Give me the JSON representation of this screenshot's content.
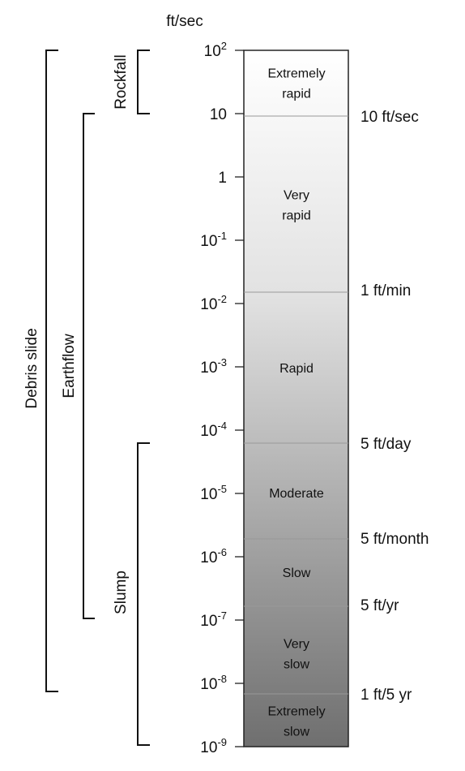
{
  "unit": "ft/sec",
  "ticks": [
    {
      "base": "10",
      "exp": "2"
    },
    {
      "label": "10"
    },
    {
      "label": "1"
    },
    {
      "base": "10",
      "exp": "-1"
    },
    {
      "base": "10",
      "exp": "-2"
    },
    {
      "base": "10",
      "exp": "-3"
    },
    {
      "base": "10",
      "exp": "-4"
    },
    {
      "base": "10",
      "exp": "-5"
    },
    {
      "base": "10",
      "exp": "-6"
    },
    {
      "base": "10",
      "exp": "-7"
    },
    {
      "base": "10",
      "exp": "-8"
    },
    {
      "base": "10",
      "exp": "-9"
    }
  ],
  "zones": [
    {
      "lines": [
        "Extremely",
        "rapid"
      ]
    },
    {
      "lines": [
        "Very",
        "rapid"
      ]
    },
    {
      "lines": [
        "Rapid"
      ]
    },
    {
      "lines": [
        "Moderate"
      ]
    },
    {
      "lines": [
        "Slow"
      ]
    },
    {
      "lines": [
        "Very",
        "slow"
      ]
    },
    {
      "lines": [
        "Extremely",
        "slow"
      ]
    }
  ],
  "rates": [
    "10 ft/sec",
    "1 ft/min",
    "5 ft/day",
    "5 ft/month",
    "5 ft/yr",
    "1 ft/5 yr"
  ],
  "movements": [
    "Rockfall",
    "Earthflow",
    "Debris slide",
    "Slump"
  ]
}
